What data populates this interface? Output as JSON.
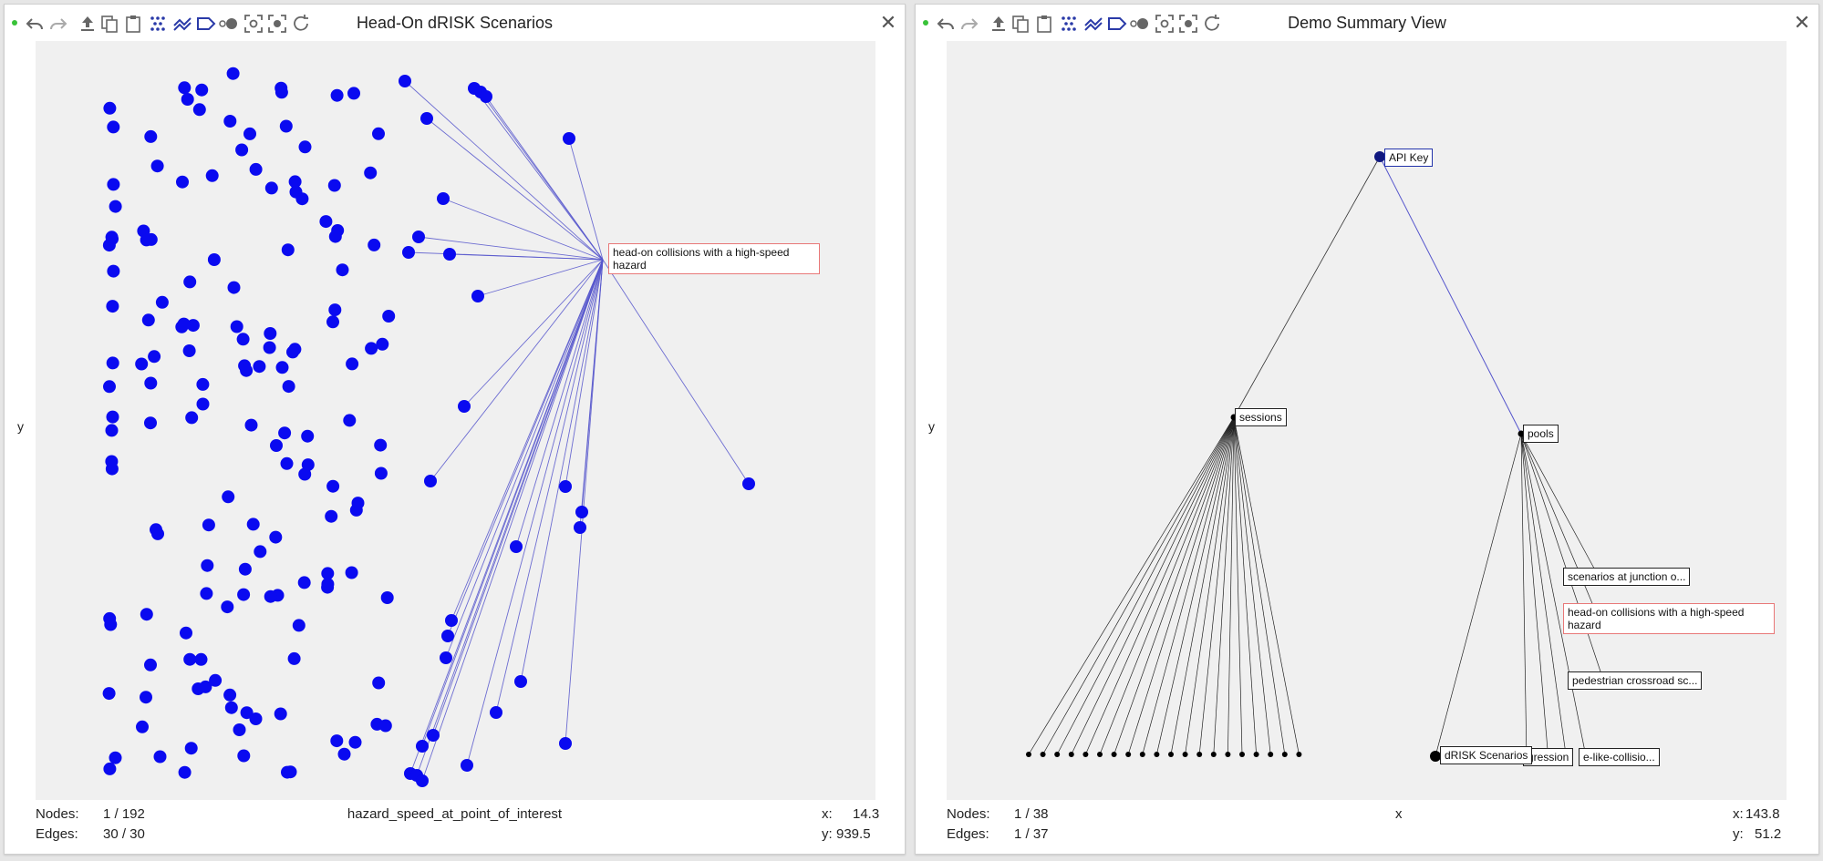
{
  "left_panel": {
    "title": "Head-On dRISK Scenarios",
    "close_label": "✕",
    "y_axis_label": "y",
    "x_axis_label": "hazard_speed_at_point_of_interest",
    "nodes_label": "Nodes:",
    "nodes_value": "1 / 192",
    "edges_label": "Edges:",
    "edges_value": "30 / 30",
    "coord_x_label": "x:",
    "coord_x_value": "14.3",
    "coord_y_label": "y:",
    "coord_y_value": "939.5",
    "highlight_label": "head-on collisions with a high-speed hazard"
  },
  "right_panel": {
    "title": "Demo Summary View",
    "close_label": "✕",
    "y_axis_label": "y",
    "x_axis_label": "x",
    "nodes_label": "Nodes:",
    "nodes_value": "1 / 38",
    "edges_label": "Edges:",
    "edges_value": "1 / 37",
    "coord_x_label": "x:",
    "coord_x_value": "143.8",
    "coord_y_label": "y:",
    "coord_y_value": "51.2",
    "labels": {
      "api_key": "API Key",
      "sessions": "sessions",
      "pools": "pools",
      "junction": "scenarios at junction o...",
      "headon": "head-on collisions with a high-speed hazard",
      "pedestrian": "pedestrian crossroad sc...",
      "drisk": "dRISK Scenarios",
      "regression": "gression",
      "likecollision": "e-like-collisio..."
    }
  },
  "toolbar_icons": [
    "undo-icon",
    "redo-icon",
    "upload-icon",
    "copy-icon",
    "paste-icon",
    "scatter-layout-icon",
    "line-layout-icon",
    "label-tag-icon",
    "circle-nodes-icon",
    "focus-icon",
    "fit-icon",
    "refresh-icon"
  ],
  "colors": {
    "node_blue": "#0a0af0",
    "edge_blue": "#5555cc",
    "highlight_red": "#e87878",
    "toolbar_blue": "#2a3aa8",
    "toolbar_gray": "#666666"
  }
}
